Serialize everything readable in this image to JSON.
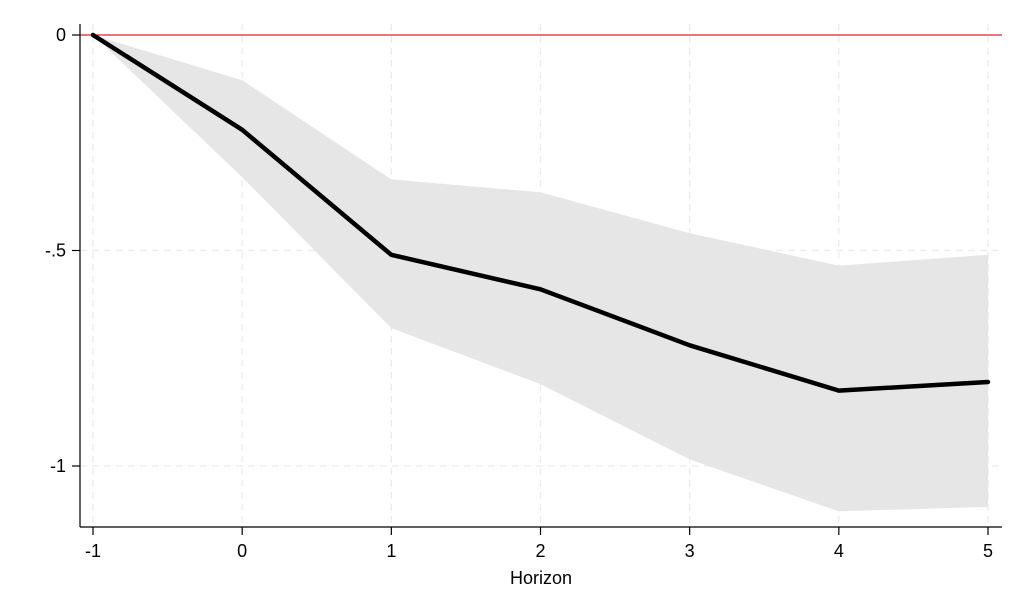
{
  "chart_data": {
    "type": "area",
    "title": "",
    "xlabel": "Horizon",
    "ylabel": "",
    "x": [
      -1,
      0,
      1,
      2,
      3,
      4,
      5
    ],
    "xlim": [
      -1.08,
      5.1
    ],
    "ylim": [
      -1.14,
      0.03
    ],
    "xticks": [
      -1,
      0,
      1,
      2,
      3,
      4,
      5
    ],
    "xtick_labels": [
      "-1",
      "0",
      "1",
      "2",
      "3",
      "4",
      "5"
    ],
    "yticks": [
      0,
      -0.5,
      -1
    ],
    "ytick_labels": [
      "0",
      "-.5",
      "-1"
    ],
    "grid": true,
    "legend": "none",
    "reference_line": {
      "y": 0,
      "color": "#e8232b"
    },
    "series": [
      {
        "type": "line",
        "values": [
          0,
          -0.22,
          -0.51,
          -0.59,
          -0.72,
          -0.825,
          -0.805
        ],
        "color": "#000000"
      },
      {
        "type": "band",
        "upper": [
          0,
          -0.105,
          -0.335,
          -0.365,
          -0.46,
          -0.535,
          -0.51
        ],
        "lower": [
          0,
          -0.33,
          -0.68,
          -0.81,
          -0.985,
          -1.105,
          -1.095
        ],
        "color": "#e6e6e6"
      }
    ]
  }
}
